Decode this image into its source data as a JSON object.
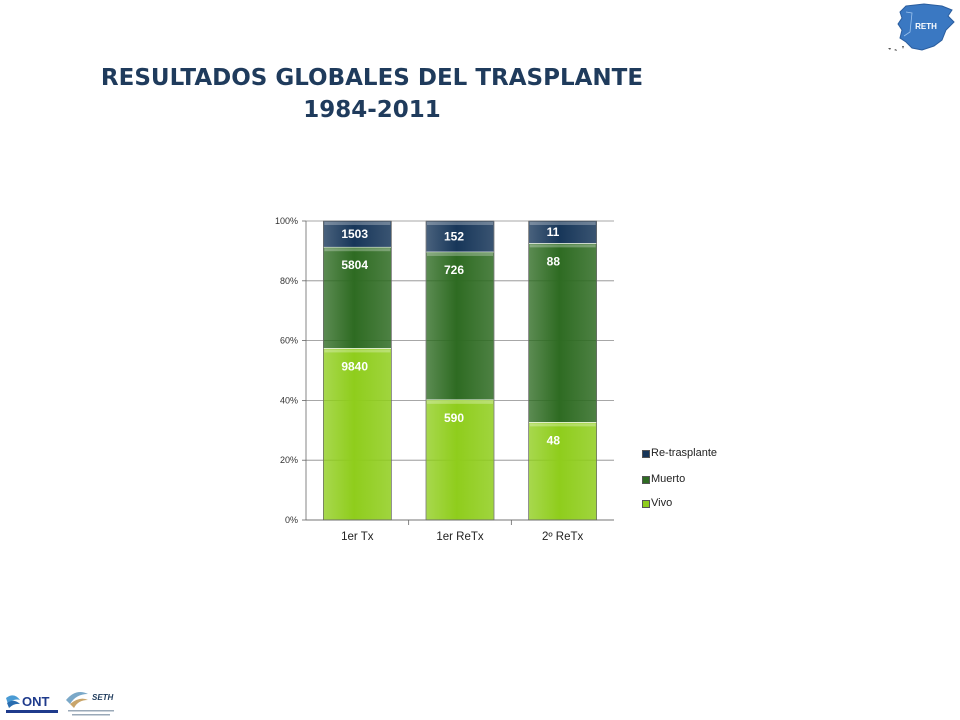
{
  "header": {
    "title_line1": "RESULTADOS GLOBALES DEL TRASPLANTE",
    "title_line2": "1984-2011"
  },
  "logos": {
    "map_label": "RETH",
    "ont_label": "ONT",
    "seth_label": "SETH",
    "map_icon": "spain-map-icon",
    "ont_icon": "ont-logo-icon",
    "seth_icon": "seth-logo-icon"
  },
  "chart_data": {
    "type": "bar",
    "stacked": "percent",
    "categories": [
      "1er Tx",
      "1er ReTx",
      "2º ReTx"
    ],
    "series": [
      {
        "name": "Vivo",
        "color": "#8fcd1c",
        "values": [
          9840,
          590,
          48
        ]
      },
      {
        "name": "Muerto",
        "color": "#2e6b22",
        "values": [
          5804,
          726,
          88
        ]
      },
      {
        "name": "Re-trasplante",
        "color": "#173659",
        "values": [
          1503,
          152,
          11
        ]
      }
    ],
    "legend_order": [
      "Re-trasplante",
      "Muerto",
      "Vivo"
    ],
    "y_ticks": [
      "0%",
      "20%",
      "40%",
      "60%",
      "80%",
      "100%"
    ],
    "ylim": [
      0,
      100
    ],
    "grid": true,
    "legend_position": "right"
  }
}
